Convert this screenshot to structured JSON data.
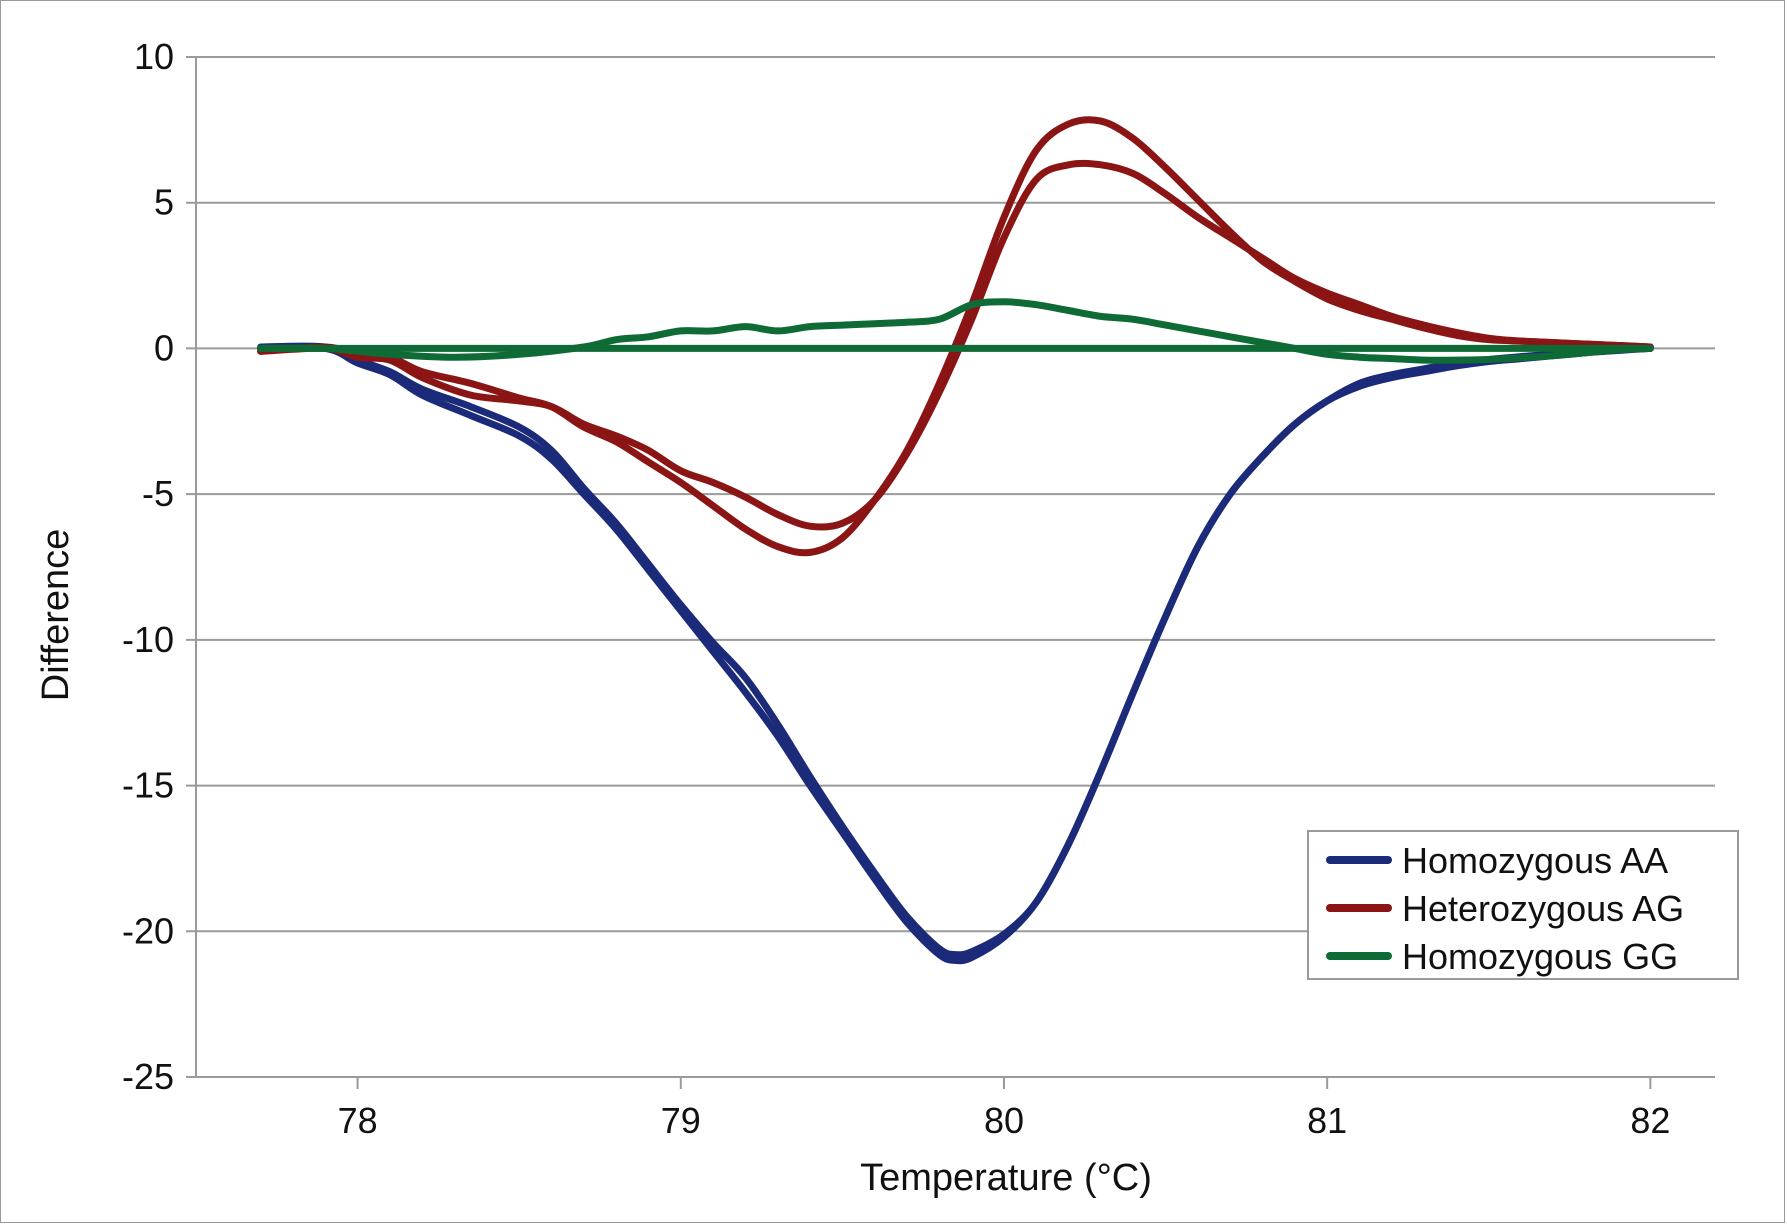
{
  "chart_data": {
    "type": "line",
    "title": "",
    "xlabel": "Temperature (°C)",
    "ylabel": "Difference",
    "xlim": [
      77.5,
      82.2
    ],
    "ylim": [
      -25,
      10
    ],
    "xticks": [
      78,
      79,
      80,
      81,
      82
    ],
    "xtick_labels": [
      "78",
      "79",
      "80",
      "81",
      "82"
    ],
    "yticks": [
      10,
      5,
      0,
      -5,
      -10,
      -15,
      -20,
      -25
    ],
    "ytick_labels": [
      "10",
      "5",
      "0",
      "-5",
      "-10",
      "-15",
      "-20",
      "-25"
    ],
    "grid": "horizontal",
    "legend_position": "bottom-right",
    "series": [
      {
        "name": "Homozygous AA",
        "color": "#1c2a7a",
        "legend": true,
        "x": [
          77.7,
          77.9,
          78.0,
          78.1,
          78.2,
          78.35,
          78.5,
          78.6,
          78.7,
          78.8,
          78.9,
          79.0,
          79.1,
          79.2,
          79.3,
          79.4,
          79.5,
          79.6,
          79.7,
          79.8,
          79.85,
          79.9,
          80.0,
          80.1,
          80.2,
          80.3,
          80.4,
          80.5,
          80.6,
          80.7,
          80.8,
          80.9,
          81.0,
          81.1,
          81.2,
          81.3,
          81.4,
          81.5,
          81.6,
          81.7,
          81.8,
          81.9,
          82.0
        ],
        "y": [
          0.0,
          0.0,
          -0.5,
          -0.9,
          -1.6,
          -2.3,
          -3.0,
          -3.8,
          -5.0,
          -6.2,
          -7.6,
          -9.0,
          -10.4,
          -11.8,
          -13.3,
          -15.0,
          -16.6,
          -18.2,
          -19.7,
          -20.8,
          -21.0,
          -20.9,
          -20.2,
          -19.0,
          -17.0,
          -14.5,
          -11.8,
          -9.2,
          -6.8,
          -5.0,
          -3.7,
          -2.6,
          -1.8,
          -1.3,
          -1.0,
          -0.8,
          -0.6,
          -0.45,
          -0.35,
          -0.25,
          -0.15,
          -0.07,
          0.0
        ]
      },
      {
        "name": "Homozygous AA",
        "color": "#1c2a7a",
        "legend": false,
        "x": [
          77.7,
          77.9,
          78.0,
          78.1,
          78.2,
          78.35,
          78.5,
          78.6,
          78.7,
          78.8,
          78.9,
          79.0,
          79.1,
          79.2,
          79.3,
          79.4,
          79.5,
          79.6,
          79.7,
          79.8,
          79.85,
          79.9,
          80.0,
          80.1,
          80.2,
          80.3,
          80.4,
          80.5,
          80.6,
          80.7,
          80.8,
          80.9,
          81.0,
          81.1,
          81.2,
          81.3,
          81.4,
          81.5,
          81.6,
          81.7,
          81.8,
          81.9,
          82.0
        ],
        "y": [
          0.05,
          0.05,
          -0.4,
          -0.8,
          -1.4,
          -2.0,
          -2.7,
          -3.5,
          -4.8,
          -6.0,
          -7.4,
          -8.8,
          -10.1,
          -11.3,
          -12.9,
          -14.7,
          -16.4,
          -18.0,
          -19.5,
          -20.6,
          -20.8,
          -20.7,
          -20.1,
          -19.0,
          -17.0,
          -14.5,
          -11.8,
          -9.2,
          -6.8,
          -5.0,
          -3.7,
          -2.6,
          -1.8,
          -1.2,
          -0.9,
          -0.7,
          -0.5,
          -0.38,
          -0.28,
          -0.2,
          -0.12,
          -0.05,
          0.0
        ]
      },
      {
        "name": "Heterozygous AG",
        "color": "#8b1414",
        "legend": true,
        "x": [
          77.7,
          77.9,
          78.0,
          78.1,
          78.2,
          78.35,
          78.5,
          78.6,
          78.7,
          78.8,
          78.9,
          79.0,
          79.1,
          79.2,
          79.3,
          79.4,
          79.5,
          79.6,
          79.7,
          79.8,
          79.9,
          80.0,
          80.1,
          80.2,
          80.3,
          80.4,
          80.5,
          80.6,
          80.7,
          80.8,
          80.9,
          81.0,
          81.1,
          81.2,
          81.3,
          81.4,
          81.5,
          81.6,
          81.7,
          81.8,
          81.9,
          82.0
        ],
        "y": [
          -0.1,
          0.0,
          -0.3,
          -0.4,
          -1.0,
          -1.6,
          -1.8,
          -2.0,
          -2.6,
          -3.0,
          -3.5,
          -4.2,
          -4.6,
          -5.1,
          -5.7,
          -6.1,
          -6.0,
          -5.2,
          -3.6,
          -1.5,
          1.0,
          3.8,
          5.8,
          6.3,
          6.3,
          6.0,
          5.3,
          4.5,
          3.8,
          3.1,
          2.4,
          1.9,
          1.5,
          1.1,
          0.8,
          0.55,
          0.35,
          0.25,
          0.2,
          0.15,
          0.1,
          0.05
        ]
      },
      {
        "name": "Heterozygous AG",
        "color": "#8b1414",
        "legend": false,
        "x": [
          77.7,
          77.9,
          78.0,
          78.1,
          78.2,
          78.35,
          78.5,
          78.6,
          78.7,
          78.8,
          78.9,
          79.0,
          79.1,
          79.2,
          79.3,
          79.4,
          79.5,
          79.6,
          79.7,
          79.8,
          79.9,
          80.0,
          80.1,
          80.2,
          80.3,
          80.4,
          80.5,
          80.6,
          80.7,
          80.8,
          80.9,
          81.0,
          81.1,
          81.2,
          81.3,
          81.4,
          81.5,
          81.6,
          81.7,
          81.8,
          81.9,
          82.0
        ],
        "y": [
          -0.1,
          0.05,
          -0.2,
          -0.3,
          -0.8,
          -1.2,
          -1.7,
          -2.0,
          -2.7,
          -3.2,
          -3.9,
          -4.6,
          -5.4,
          -6.2,
          -6.8,
          -7.0,
          -6.5,
          -5.2,
          -3.5,
          -1.2,
          1.5,
          4.5,
          6.8,
          7.7,
          7.8,
          7.2,
          6.2,
          5.1,
          4.0,
          3.0,
          2.3,
          1.7,
          1.3,
          1.0,
          0.7,
          0.45,
          0.3,
          0.25,
          0.2,
          0.15,
          0.1,
          0.05
        ]
      },
      {
        "name": "Homozygous GG",
        "color": "#0f6b35",
        "legend": true,
        "x": [
          77.7,
          77.9,
          78.1,
          78.3,
          78.5,
          78.7,
          78.8,
          78.9,
          79.0,
          79.1,
          79.2,
          79.3,
          79.4,
          79.5,
          79.6,
          79.7,
          79.8,
          79.9,
          80.0,
          80.1,
          80.2,
          80.3,
          80.4,
          80.5,
          80.6,
          80.7,
          80.8,
          80.9,
          81.0,
          81.1,
          81.2,
          81.3,
          81.4,
          81.5,
          81.6,
          81.7,
          81.8,
          81.9,
          82.0
        ],
        "y": [
          0.0,
          0.0,
          -0.2,
          -0.3,
          -0.2,
          0.05,
          0.3,
          0.4,
          0.6,
          0.6,
          0.75,
          0.6,
          0.75,
          0.8,
          0.85,
          0.9,
          1.0,
          1.5,
          1.6,
          1.5,
          1.3,
          1.1,
          1.0,
          0.8,
          0.6,
          0.4,
          0.2,
          0.0,
          -0.2,
          -0.3,
          -0.35,
          -0.4,
          -0.4,
          -0.38,
          -0.32,
          -0.25,
          -0.15,
          -0.05,
          0.0
        ]
      },
      {
        "name": "Homozygous GG",
        "color": "#0f6b35",
        "legend": false,
        "x": [
          77.7,
          78.0,
          78.5,
          79.0,
          79.5,
          80.0,
          80.5,
          81.0,
          81.5,
          82.0
        ],
        "y": [
          0.0,
          0.0,
          0.0,
          0.0,
          0.0,
          0.0,
          0.0,
          0.0,
          0.0,
          0.0
        ]
      }
    ]
  }
}
